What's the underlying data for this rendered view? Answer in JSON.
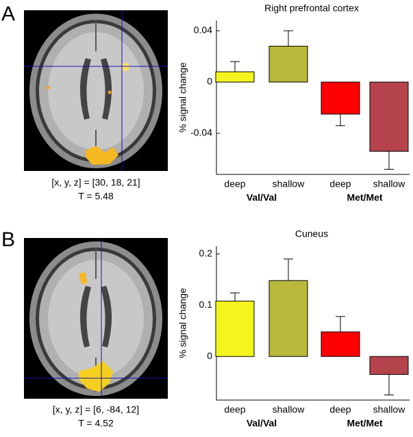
{
  "chart_data": [
    {
      "type": "bar",
      "panel": "A",
      "title": "Right prefrontal cortex",
      "y_label": "% signal change",
      "caption": [
        "[x, y, z] = [30, 18, 21]",
        "T = 5.48"
      ],
      "categories": [
        "deep",
        "shallow",
        "deep",
        "shallow"
      ],
      "groups": [
        "Val/Val",
        "Met/Met"
      ],
      "values": [
        0.008,
        0.028,
        -0.025,
        -0.054
      ],
      "errors": [
        0.008,
        0.012,
        0.009,
        0.014
      ],
      "colors": [
        "#f5f51e",
        "#b8b83c",
        "#ff0000",
        "#b4434b"
      ],
      "ylim": [
        -0.072,
        0.048
      ],
      "yticks": [
        -0.04,
        0,
        0.04
      ]
    },
    {
      "type": "bar",
      "panel": "B",
      "title": "Cuneus",
      "y_label": "% signal change",
      "caption": [
        "[x, y, z] = [6, -84, 12]",
        "T = 4.52"
      ],
      "categories": [
        "deep",
        "shallow",
        "deep",
        "shallow"
      ],
      "groups": [
        "Val/Val",
        "Met/Met"
      ],
      "values": [
        0.108,
        0.148,
        0.048,
        -0.035
      ],
      "errors": [
        0.016,
        0.042,
        0.03,
        0.04
      ],
      "colors": [
        "#f5f51e",
        "#b8b83c",
        "#ff0000",
        "#b4434b"
      ],
      "ylim": [
        -0.085,
        0.215
      ],
      "yticks": [
        0,
        0.1,
        0.2
      ]
    }
  ]
}
